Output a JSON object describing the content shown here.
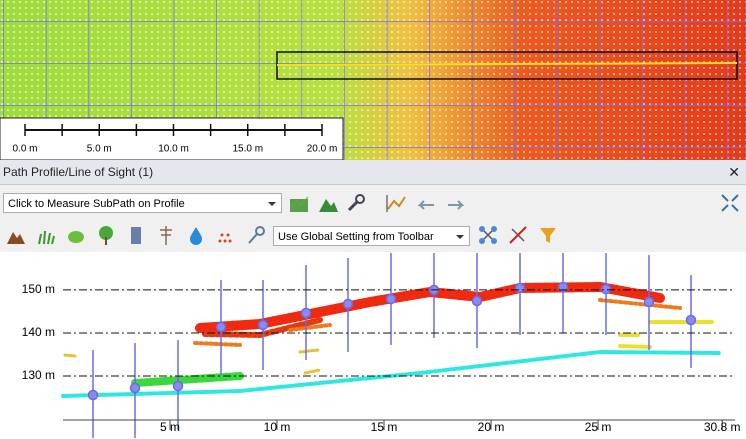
{
  "map": {
    "scale_bar": {
      "labels": [
        "0.0 m",
        "5.0 m",
        "10.0 m",
        "15.0 m",
        "20.0 m"
      ]
    }
  },
  "panel": {
    "title": "Path Profile/Line of Sight (1)"
  },
  "toolbar": {
    "measure_mode": "Click to Measure SubPath on Profile",
    "setting": "Use Global Setting from Toolbar"
  },
  "profile": {
    "xlim": [
      0,
      31.4
    ],
    "ylim": [
      119.8,
      157.4
    ],
    "xticks": [
      {
        "value": 5,
        "label": "5 m"
      },
      {
        "value": 10,
        "label": "10 m"
      },
      {
        "value": 15,
        "label": "15 m"
      },
      {
        "value": 20,
        "label": "20 m"
      },
      {
        "value": 25,
        "label": "25 m"
      },
      {
        "value": 30.8,
        "label": "30.8 m"
      }
    ],
    "yticks": [
      {
        "value": 130,
        "label": "130 m"
      },
      {
        "value": 140,
        "label": "140 m"
      },
      {
        "value": 150,
        "label": "150 m"
      }
    ],
    "grid": true
  }
}
